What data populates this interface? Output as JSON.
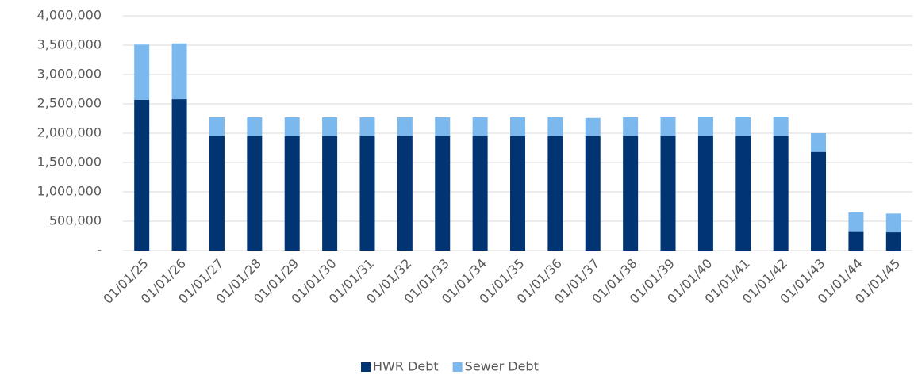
{
  "chart_data": {
    "type": "stacked_bar",
    "categories": [
      "01/01/25",
      "01/01/26",
      "01/01/27",
      "01/01/28",
      "01/01/29",
      "01/01/30",
      "01/01/31",
      "01/01/32",
      "01/01/33",
      "01/01/34",
      "01/01/35",
      "01/01/36",
      "01/01/37",
      "01/01/38",
      "01/01/39",
      "01/01/40",
      "01/01/41",
      "01/01/42",
      "01/01/43",
      "01/01/44",
      "01/01/45"
    ],
    "series": [
      {
        "name": "HWR Debt",
        "color": "#003473",
        "values": [
          2570000,
          2580000,
          1950000,
          1950000,
          1950000,
          1950000,
          1950000,
          1950000,
          1950000,
          1950000,
          1950000,
          1950000,
          1950000,
          1950000,
          1950000,
          1950000,
          1950000,
          1950000,
          1680000,
          330000,
          310000
        ]
      },
      {
        "name": "Sewer Debt",
        "color": "#7ab8ee",
        "values": [
          940000,
          950000,
          320000,
          320000,
          320000,
          320000,
          320000,
          320000,
          320000,
          320000,
          320000,
          320000,
          310000,
          320000,
          320000,
          320000,
          320000,
          320000,
          320000,
          320000,
          320000
        ]
      }
    ],
    "ylim": [
      0,
      4000000
    ],
    "yticks": [
      {
        "value": 0,
        "label": "-"
      },
      {
        "value": 500000,
        "label": "500,000"
      },
      {
        "value": 1000000,
        "label": "1,000,000"
      },
      {
        "value": 1500000,
        "label": "1,500,000"
      },
      {
        "value": 2000000,
        "label": "2,000,000"
      },
      {
        "value": 2500000,
        "label": "2,500,000"
      },
      {
        "value": 3000000,
        "label": "3,000,000"
      },
      {
        "value": 3500000,
        "label": "3,500,000"
      },
      {
        "value": 4000000,
        "label": "4,000,000"
      }
    ],
    "grid": true,
    "legend": "bottom"
  }
}
